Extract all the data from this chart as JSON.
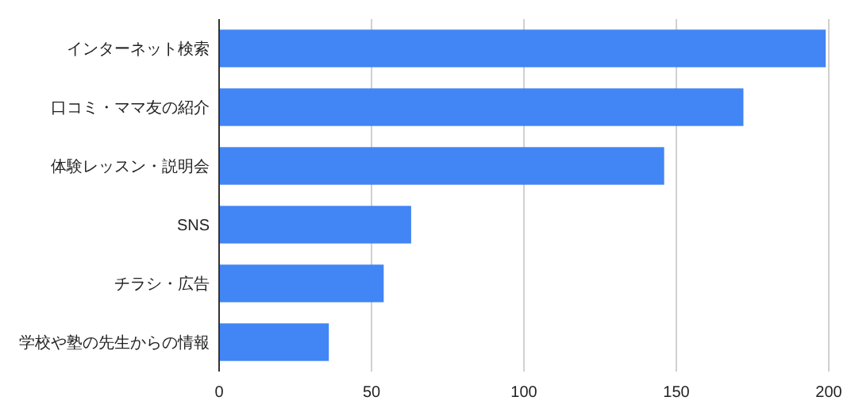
{
  "chart_data": {
    "type": "bar",
    "orientation": "horizontal",
    "categories": [
      "インターネット検索",
      "口コミ・ママ友の紹介",
      "体験レッスン・説明会",
      "SNS",
      "チラシ・広告",
      "学校や塾の先生からの情報"
    ],
    "values": [
      199,
      172,
      146,
      63,
      54,
      36
    ],
    "color": "#4285f4",
    "xlim": [
      0,
      200
    ],
    "xticks": [
      0,
      50,
      100,
      150,
      200
    ],
    "grid": "x"
  }
}
